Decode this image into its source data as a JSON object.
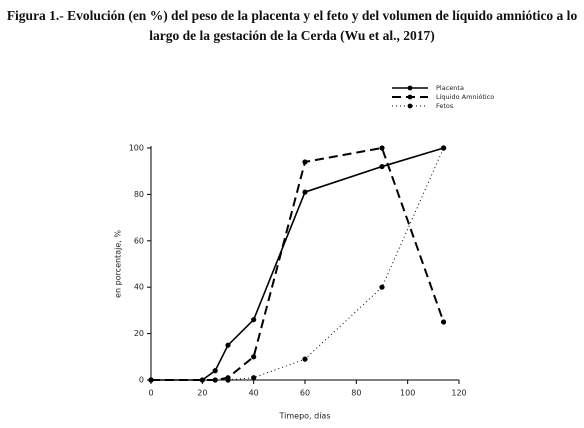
{
  "chart_data": {
    "type": "line",
    "title": "Figura 1.- Evolución (en %) del peso de la placenta y el feto y del volumen de líquido amniótico a lo largo de la gestación de la Cerda (Wu et al., 2017)",
    "xlabel": "Timepo, días",
    "ylabel": "en porcentaje, %",
    "xlim": [
      0,
      120
    ],
    "xticks": [
      0,
      20,
      40,
      60,
      80,
      100,
      120
    ],
    "ylim": [
      0,
      100
    ],
    "yticks": [
      0,
      20,
      40,
      60,
      80,
      100
    ],
    "legend": "upper right",
    "series": [
      {
        "name": "Placenta",
        "color": "#000000",
        "linestyle": "solid",
        "x": [
          0,
          20,
          25,
          30,
          40,
          60,
          90,
          114
        ],
        "values": [
          0,
          0,
          4,
          15,
          26,
          81,
          92,
          100
        ]
      },
      {
        "name": "Líquido Amniótico",
        "color": "#000000",
        "linestyle": "dashed",
        "x": [
          0,
          25,
          30,
          40,
          60,
          90,
          114
        ],
        "values": [
          0,
          0,
          1,
          10,
          94,
          100,
          25
        ]
      },
      {
        "name": "Fetos",
        "color": "#000000",
        "linestyle": "dotted",
        "x": [
          30,
          40,
          60,
          90,
          114
        ],
        "values": [
          0,
          1,
          9,
          40,
          100
        ]
      }
    ]
  }
}
